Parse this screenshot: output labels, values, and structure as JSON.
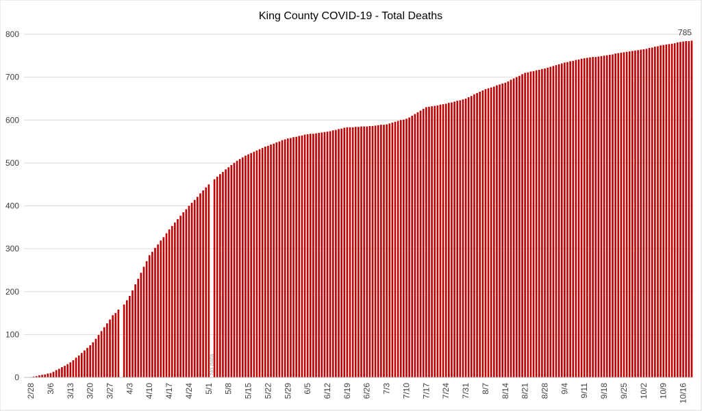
{
  "chart_data": {
    "type": "bar",
    "title": "King County COVID-19 - Total Deaths",
    "annotation": "No data",
    "color": "#c00000",
    "ylim": [
      0,
      800
    ],
    "yticks": [
      0,
      100,
      200,
      300,
      400,
      500,
      600,
      700,
      800
    ],
    "grid": true,
    "categories": [
      "2/28",
      null,
      null,
      null,
      null,
      null,
      null,
      "3/6",
      null,
      null,
      null,
      null,
      null,
      null,
      "3/13",
      null,
      null,
      null,
      null,
      null,
      null,
      "3/20",
      null,
      null,
      null,
      null,
      null,
      null,
      "3/27",
      null,
      null,
      null,
      null,
      null,
      null,
      "4/3",
      null,
      null,
      null,
      null,
      null,
      null,
      "4/10",
      null,
      null,
      null,
      null,
      null,
      null,
      "4/17",
      null,
      null,
      null,
      null,
      null,
      null,
      "4/24",
      null,
      null,
      null,
      null,
      null,
      null,
      "5/1",
      null,
      null,
      null,
      null,
      null,
      null,
      "5/8",
      null,
      null,
      null,
      null,
      null,
      null,
      "5/15",
      null,
      null,
      null,
      null,
      null,
      null,
      "5/22",
      null,
      null,
      null,
      null,
      null,
      null,
      "5/29",
      null,
      null,
      null,
      null,
      null,
      null,
      "6/5",
      null,
      null,
      null,
      null,
      null,
      null,
      "6/12",
      null,
      null,
      null,
      null,
      null,
      null,
      "6/19",
      null,
      null,
      null,
      null,
      null,
      null,
      "6/26",
      null,
      null,
      null,
      null,
      null,
      null,
      "7/3",
      null,
      null,
      null,
      null,
      null,
      null,
      "7/10",
      null,
      null,
      null,
      null,
      null,
      null,
      "7/17",
      null,
      null,
      null,
      null,
      null,
      null,
      "7/24",
      null,
      null,
      null,
      null,
      null,
      null,
      "7/31",
      null,
      null,
      null,
      null,
      null,
      null,
      "8/7",
      null,
      null,
      null,
      null,
      null,
      null,
      "8/14",
      null,
      null,
      null,
      null,
      null,
      null,
      "8/21",
      null,
      null,
      null,
      null,
      null,
      null,
      "8/28",
      null,
      null,
      null,
      null,
      null,
      null,
      "9/4",
      null,
      null,
      null,
      null,
      null,
      null,
      "9/11",
      null,
      null,
      null,
      null,
      null,
      null,
      "9/18",
      null,
      null,
      null,
      null,
      null,
      null,
      "9/25",
      null,
      null,
      null,
      null,
      null,
      null,
      "10/2",
      null,
      null,
      null,
      null,
      null,
      null,
      "10/9",
      null,
      null,
      null,
      null,
      null,
      null,
      "10/16",
      null,
      null,
      null
    ],
    "values": [
      1,
      2,
      3,
      5,
      6,
      7,
      9,
      10,
      13,
      17,
      20,
      24,
      27,
      31,
      35,
      40,
      46,
      51,
      57,
      63,
      69,
      75,
      82,
      90,
      99,
      108,
      117,
      126,
      135,
      145,
      150,
      158,
      null,
      170,
      180,
      190,
      203,
      217,
      230,
      244,
      258,
      271,
      285,
      293,
      302,
      310,
      319,
      327,
      336,
      345,
      353,
      361,
      369,
      377,
      385,
      392,
      400,
      407,
      414,
      421,
      429,
      436,
      443,
      450,
      null,
      462,
      468,
      474,
      479,
      485,
      490,
      495,
      500,
      505,
      509,
      513,
      517,
      520,
      523,
      526,
      529,
      532,
      535,
      538,
      540,
      543,
      545,
      548,
      550,
      553,
      555,
      557,
      558,
      560,
      561,
      563,
      564,
      566,
      567,
      568,
      568,
      569,
      570,
      571,
      572,
      573,
      574,
      576,
      577,
      579,
      580,
      582,
      583,
      583,
      583,
      584,
      584,
      585,
      585,
      585,
      586,
      586,
      587,
      588,
      589,
      589,
      590,
      592,
      594,
      596,
      598,
      600,
      601,
      603,
      606,
      610,
      614,
      618,
      622,
      626,
      630,
      631,
      632,
      633,
      634,
      636,
      637,
      638,
      640,
      641,
      643,
      645,
      646,
      648,
      650,
      653,
      656,
      660,
      663,
      666,
      669,
      672,
      674,
      676,
      678,
      681,
      683,
      685,
      687,
      690,
      694,
      697,
      700,
      703,
      707,
      710,
      711,
      713,
      714,
      716,
      717,
      719,
      720,
      722,
      724,
      726,
      728,
      730,
      732,
      734,
      735,
      737,
      738,
      740,
      741,
      743,
      744,
      745,
      746,
      747,
      747,
      748,
      749,
      750,
      751,
      752,
      753,
      755,
      756,
      757,
      758,
      759,
      760,
      761,
      762,
      763,
      764,
      765,
      766,
      768,
      769,
      771,
      772,
      774,
      775,
      776,
      777,
      778,
      779,
      781,
      782,
      783,
      784,
      784,
      785
    ]
  }
}
